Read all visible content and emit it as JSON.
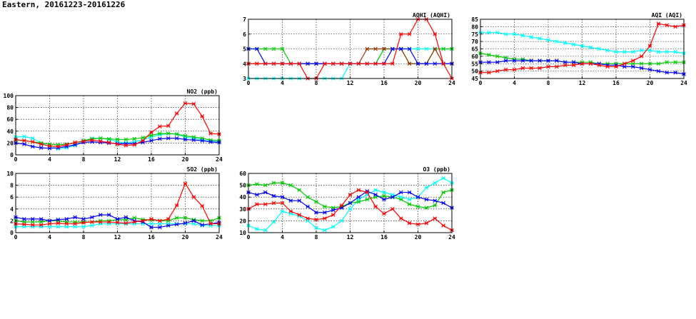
{
  "page": {
    "title": "Eastern, 20161223-20161226"
  },
  "chart_data": [
    {
      "id": "aqhi",
      "type": "line",
      "title": "AQHI (AQHI)",
      "xlim": [
        0,
        24
      ],
      "ylim": [
        3,
        7
      ],
      "xticks": [
        0,
        4,
        8,
        12,
        16,
        20,
        24
      ],
      "yticks": [
        3,
        4,
        5,
        6,
        7
      ],
      "grid": true,
      "series": [
        {
          "color": "#00ffff",
          "values": [
            3,
            3,
            3,
            3,
            3,
            3,
            3,
            3,
            3,
            3,
            3,
            3,
            4,
            4,
            4,
            4,
            5,
            5,
            5,
            5,
            5,
            5,
            5,
            5,
            5
          ]
        },
        {
          "color": "#00cc00",
          "values": [
            5,
            5,
            5,
            5,
            5,
            4,
            4,
            4,
            4,
            4,
            4,
            4,
            4,
            4,
            4,
            4,
            5,
            5,
            5,
            4,
            4,
            4,
            5,
            5,
            5
          ]
        },
        {
          "color": "#993300",
          "values": [
            4,
            4,
            4,
            4,
            4,
            4,
            4,
            4,
            4,
            4,
            4,
            4,
            4,
            4,
            5,
            5,
            5,
            5,
            5,
            4,
            4,
            4,
            5,
            4,
            4
          ]
        },
        {
          "color": "#0000ff",
          "values": [
            5,
            5,
            4,
            4,
            4,
            4,
            4,
            4,
            4,
            4,
            4,
            4,
            4,
            4,
            4,
            4,
            4,
            5,
            5,
            5,
            4,
            4,
            4,
            4,
            4
          ]
        },
        {
          "color": "#ff0000",
          "values": [
            4,
            4,
            4,
            4,
            4,
            4,
            4,
            3,
            3,
            4,
            4,
            4,
            4,
            4,
            4,
            4,
            4,
            4,
            6,
            6,
            7,
            7,
            6,
            4,
            3
          ]
        }
      ]
    },
    {
      "id": "aqi",
      "type": "line",
      "title": "AQI (AQI)",
      "xlim": [
        0,
        24
      ],
      "ylim": [
        45,
        85
      ],
      "xticks": [
        0,
        4,
        8,
        12,
        16,
        20,
        24
      ],
      "yticks": [
        45,
        50,
        55,
        60,
        65,
        70,
        75,
        80,
        85
      ],
      "grid": true,
      "series": [
        {
          "color": "#00ffff",
          "values": [
            76,
            76,
            76,
            75,
            75,
            74,
            73,
            72,
            71,
            70,
            69,
            68,
            67,
            66,
            65,
            64,
            63,
            63,
            63,
            64,
            64,
            63,
            63,
            63,
            62
          ]
        },
        {
          "color": "#00cc00",
          "values": [
            62,
            61,
            60,
            59,
            58,
            58,
            57,
            57,
            57,
            57,
            56,
            56,
            56,
            56,
            55,
            55,
            55,
            55,
            55,
            55,
            55,
            55,
            56,
            56,
            56
          ]
        },
        {
          "color": "#0000ff",
          "values": [
            56,
            56,
            56,
            57,
            57,
            57,
            57,
            57,
            57,
            57,
            56,
            56,
            55,
            55,
            55,
            54,
            54,
            53,
            53,
            52,
            51,
            50,
            49,
            49,
            48
          ]
        },
        {
          "color": "#ff0000",
          "values": [
            49,
            49,
            50,
            51,
            51,
            52,
            52,
            52,
            53,
            53,
            54,
            54,
            55,
            55,
            54,
            53,
            53,
            55,
            57,
            60,
            67,
            82,
            81,
            80,
            81
          ]
        }
      ]
    },
    {
      "id": "no2",
      "type": "line",
      "title": "NO2 (ppb)",
      "xlim": [
        0,
        24
      ],
      "ylim": [
        0,
        100
      ],
      "xticks": [
        0,
        4,
        8,
        12,
        16,
        20,
        24
      ],
      "yticks": [
        0,
        20,
        40,
        60,
        80,
        100
      ],
      "grid": true,
      "series": [
        {
          "color": "#00ffff",
          "values": [
            30,
            31,
            28,
            20,
            14,
            10,
            12,
            16,
            24,
            28,
            28,
            26,
            22,
            20,
            22,
            25,
            30,
            34,
            36,
            35,
            30,
            28,
            25,
            23,
            22
          ]
        },
        {
          "color": "#00cc00",
          "values": [
            25,
            24,
            22,
            20,
            18,
            17,
            18,
            20,
            24,
            27,
            28,
            27,
            26,
            26,
            27,
            29,
            33,
            36,
            36,
            35,
            32,
            30,
            28,
            25,
            24
          ]
        },
        {
          "color": "#0000ff",
          "values": [
            20,
            18,
            14,
            12,
            11,
            12,
            14,
            17,
            21,
            22,
            21,
            20,
            19,
            19,
            19,
            21,
            24,
            27,
            28,
            28,
            26,
            25,
            24,
            22,
            21
          ]
        },
        {
          "color": "#ff0000",
          "values": [
            26,
            24,
            22,
            18,
            15,
            14,
            17,
            21,
            23,
            25,
            23,
            21,
            18,
            16,
            17,
            24,
            38,
            48,
            49,
            70,
            87,
            86,
            65,
            36,
            35
          ]
        }
      ]
    },
    {
      "id": "so2",
      "type": "line",
      "title": "SO2 (ppb)",
      "xlim": [
        0,
        24
      ],
      "ylim": [
        0,
        10
      ],
      "xticks": [
        0,
        4,
        8,
        12,
        16,
        20,
        24
      ],
      "yticks": [
        0,
        2,
        4,
        6,
        8,
        10
      ],
      "grid": true,
      "series": [
        {
          "color": "#00ffff",
          "values": [
            1,
            1,
            1,
            1,
            1,
            1,
            1,
            1,
            1,
            1.2,
            1.5,
            1.5,
            1.5,
            1.5,
            1.5,
            1.5,
            1.5,
            1.5,
            1.5,
            1.5,
            1.5,
            1.5,
            1.2,
            1.2,
            1.2
          ]
        },
        {
          "color": "#00cc00",
          "values": [
            2,
            1.8,
            1.8,
            1.8,
            2,
            2,
            1.8,
            1.8,
            1.8,
            1.8,
            2,
            2,
            2.2,
            2.2,
            2.5,
            2.2,
            2.2,
            2,
            2,
            2.5,
            2.5,
            2.2,
            2,
            2,
            2.5
          ]
        },
        {
          "color": "#0000ff",
          "values": [
            2.6,
            2.3,
            2.3,
            2.3,
            2.0,
            2.2,
            2.3,
            2.6,
            2.3,
            2.6,
            3.0,
            3.0,
            2.3,
            2.6,
            2.0,
            1.8,
            0.9,
            0.9,
            1.2,
            1.4,
            1.6,
            2.0,
            1.3,
            1.5,
            1.7
          ]
        },
        {
          "color": "#ff0000",
          "values": [
            1.5,
            1.4,
            1.3,
            1.3,
            1.5,
            1.6,
            1.5,
            1.5,
            1.7,
            1.8,
            1.8,
            1.8,
            1.7,
            1.6,
            1.8,
            2.0,
            2.3,
            2.0,
            2.3,
            4.6,
            8.3,
            6.0,
            4.5,
            1.5,
            1.5
          ]
        }
      ]
    },
    {
      "id": "o3",
      "type": "line",
      "title": "O3 (ppb)",
      "xlim": [
        0,
        24
      ],
      "ylim": [
        10,
        60
      ],
      "xticks": [
        0,
        4,
        8,
        12,
        16,
        20,
        24
      ],
      "yticks": [
        10,
        20,
        30,
        40,
        50,
        60
      ],
      "grid": true,
      "series": [
        {
          "color": "#00ffff",
          "values": [
            16,
            13,
            12,
            19,
            28,
            26,
            24,
            20,
            14,
            12,
            15,
            20,
            30,
            38,
            42,
            46,
            44,
            42,
            40,
            38,
            40,
            48,
            52,
            56,
            52
          ]
        },
        {
          "color": "#00cc00",
          "values": [
            50,
            51,
            50,
            52,
            52,
            50,
            46,
            40,
            36,
            32,
            31,
            32,
            35,
            36,
            38,
            40,
            41,
            40,
            38,
            34,
            32,
            31,
            33,
            44,
            46
          ]
        },
        {
          "color": "#0000ff",
          "values": [
            44,
            42,
            44,
            41,
            40,
            37,
            37,
            32,
            27,
            27,
            29,
            31,
            35,
            40,
            45,
            42,
            38,
            40,
            44,
            44,
            40,
            38,
            37,
            35,
            31
          ]
        },
        {
          "color": "#ff0000",
          "values": [
            30,
            34,
            34,
            35,
            35,
            28,
            25,
            22,
            21,
            22,
            25,
            33,
            42,
            46,
            44,
            32,
            26,
            30,
            22,
            18,
            17,
            18,
            22,
            16,
            12
          ]
        }
      ]
    }
  ]
}
